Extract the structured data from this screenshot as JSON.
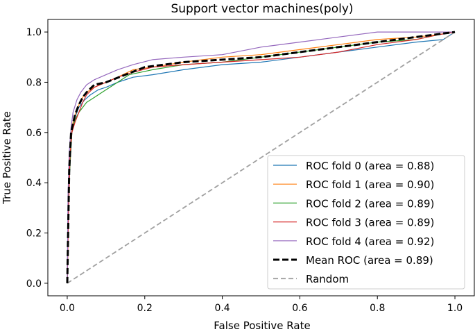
{
  "chart_data": {
    "type": "line",
    "title": "Support vector machines(poly)",
    "xlabel": "False Positive Rate",
    "ylabel": "True Positive Rate",
    "xlim": [
      -0.05,
      1.05
    ],
    "ylim": [
      -0.05,
      1.05
    ],
    "xticks": [
      "0.0",
      "0.2",
      "0.4",
      "0.6",
      "0.8",
      "1.0"
    ],
    "yticks": [
      "0.0",
      "0.2",
      "0.4",
      "0.6",
      "0.8",
      "1.0"
    ],
    "grid": false,
    "legend_position": "lower-right",
    "series": [
      {
        "name": "ROC fold 0 (area = 0.88)",
        "color": "#1f77b4",
        "style": "solid",
        "x": [
          0,
          0.003,
          0.007,
          0.012,
          0.02,
          0.03,
          0.045,
          0.06,
          0.08,
          0.1,
          0.13,
          0.17,
          0.22,
          0.3,
          0.4,
          0.5,
          0.6,
          0.7,
          0.8,
          0.9,
          0.97,
          1.0
        ],
        "y": [
          0,
          0.3,
          0.48,
          0.6,
          0.66,
          0.7,
          0.73,
          0.75,
          0.77,
          0.78,
          0.8,
          0.82,
          0.83,
          0.85,
          0.87,
          0.88,
          0.9,
          0.92,
          0.94,
          0.96,
          0.97,
          1.0
        ]
      },
      {
        "name": "ROC fold 1 (area = 0.90)",
        "color": "#ff7f0e",
        "style": "solid",
        "x": [
          0,
          0.003,
          0.006,
          0.01,
          0.015,
          0.025,
          0.035,
          0.05,
          0.07,
          0.1,
          0.13,
          0.17,
          0.22,
          0.3,
          0.4,
          0.5,
          0.6,
          0.7,
          0.8,
          0.9,
          0.96,
          1.0
        ],
        "y": [
          0,
          0.28,
          0.45,
          0.58,
          0.64,
          0.69,
          0.73,
          0.76,
          0.78,
          0.8,
          0.82,
          0.85,
          0.86,
          0.88,
          0.9,
          0.91,
          0.93,
          0.95,
          0.97,
          0.98,
          0.99,
          1.0
        ]
      },
      {
        "name": "ROC fold 2 (area = 0.89)",
        "color": "#2ca02c",
        "style": "solid",
        "x": [
          0,
          0.003,
          0.008,
          0.012,
          0.02,
          0.03,
          0.04,
          0.05,
          0.07,
          0.09,
          0.12,
          0.16,
          0.22,
          0.3,
          0.4,
          0.5,
          0.6,
          0.7,
          0.8,
          0.9,
          0.96,
          1.0
        ],
        "y": [
          0,
          0.35,
          0.49,
          0.6,
          0.65,
          0.68,
          0.7,
          0.72,
          0.74,
          0.76,
          0.79,
          0.83,
          0.85,
          0.87,
          0.88,
          0.9,
          0.92,
          0.94,
          0.96,
          0.97,
          0.99,
          1.0
        ]
      },
      {
        "name": "ROC fold 3 (area = 0.89)",
        "color": "#d62728",
        "style": "solid",
        "x": [
          0,
          0.003,
          0.007,
          0.012,
          0.02,
          0.03,
          0.04,
          0.05,
          0.07,
          0.1,
          0.13,
          0.17,
          0.22,
          0.3,
          0.4,
          0.5,
          0.6,
          0.7,
          0.8,
          0.9,
          0.96,
          1.0
        ],
        "y": [
          0,
          0.25,
          0.5,
          0.6,
          0.64,
          0.68,
          0.72,
          0.75,
          0.78,
          0.8,
          0.82,
          0.84,
          0.86,
          0.87,
          0.88,
          0.89,
          0.9,
          0.92,
          0.95,
          0.97,
          0.99,
          1.0
        ]
      },
      {
        "name": "ROC fold 4 (area = 0.92)",
        "color": "#9467bd",
        "style": "solid",
        "x": [
          0,
          0.002,
          0.005,
          0.01,
          0.015,
          0.025,
          0.035,
          0.05,
          0.07,
          0.1,
          0.13,
          0.17,
          0.22,
          0.3,
          0.4,
          0.5,
          0.6,
          0.7,
          0.75,
          0.8,
          0.9,
          1.0
        ],
        "y": [
          0,
          0.35,
          0.52,
          0.62,
          0.68,
          0.73,
          0.76,
          0.79,
          0.81,
          0.83,
          0.85,
          0.87,
          0.89,
          0.9,
          0.91,
          0.94,
          0.96,
          0.98,
          0.99,
          1.0,
          1.0,
          1.0
        ]
      },
      {
        "name": "Mean ROC (area = 0.89)",
        "color": "#000000",
        "style": "dashed-bold",
        "x": [
          0,
          0.005,
          0.01,
          0.02,
          0.03,
          0.04,
          0.05,
          0.07,
          0.1,
          0.15,
          0.2,
          0.3,
          0.4,
          0.5,
          0.6,
          0.7,
          0.8,
          0.9,
          1.0
        ],
        "y": [
          0,
          0.45,
          0.6,
          0.67,
          0.71,
          0.74,
          0.76,
          0.79,
          0.8,
          0.83,
          0.86,
          0.88,
          0.89,
          0.9,
          0.92,
          0.94,
          0.96,
          0.98,
          1.0
        ]
      },
      {
        "name": "Random",
        "color": "#a0a0a0",
        "style": "dashed",
        "x": [
          0,
          1
        ],
        "y": [
          0,
          1
        ]
      }
    ]
  }
}
